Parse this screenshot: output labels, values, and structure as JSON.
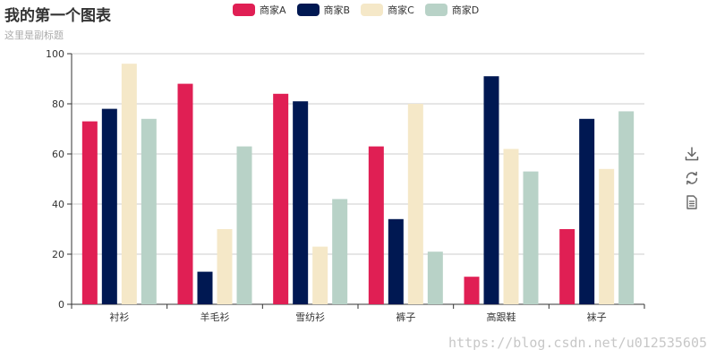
{
  "chart_data": {
    "type": "bar",
    "title": "我的第一个图表",
    "subtitle": "这里是副标题",
    "categories": [
      "衬衫",
      "羊毛衫",
      "雪纺衫",
      "裤子",
      "高跟鞋",
      "袜子"
    ],
    "series": [
      {
        "name": "商家A",
        "color": "#e01f54",
        "values": [
          73,
          88,
          84,
          63,
          11,
          30
        ]
      },
      {
        "name": "商家B",
        "color": "#001852",
        "values": [
          78,
          13,
          81,
          34,
          91,
          74
        ]
      },
      {
        "name": "商家C",
        "color": "#f5e8c8",
        "values": [
          96,
          30,
          23,
          80,
          62,
          54
        ]
      },
      {
        "name": "商家D",
        "color": "#b8d2c7",
        "values": [
          74,
          63,
          42,
          21,
          53,
          77
        ]
      }
    ],
    "ylim": [
      0,
      100
    ],
    "yticks": [
      0,
      20,
      40,
      60,
      80,
      100
    ],
    "grid": true,
    "legend_position": "top"
  },
  "toolbox": {
    "icons": [
      "download-icon",
      "refresh-icon",
      "data-view-icon"
    ]
  },
  "watermark": "https://blog.csdn.net/u012535605"
}
